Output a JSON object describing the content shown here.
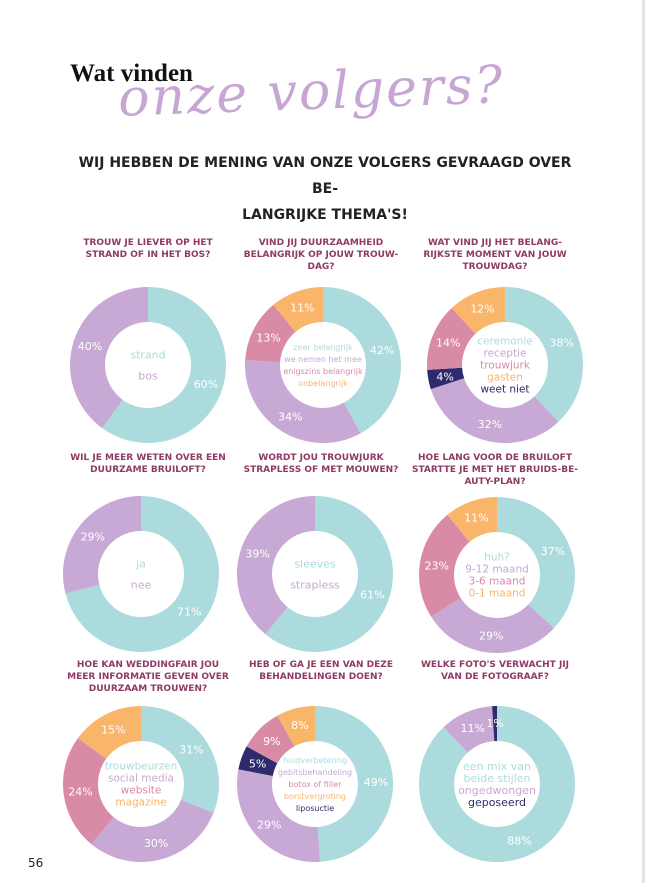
{
  "header": {
    "title_part1": "Wat vinden",
    "title_part2": "onze volgers?",
    "subtitle_line1": "WIJ HEBBEN DE MENING VAN ONZE VOLGERS GEVRAAGD OVER BE-",
    "subtitle_line2": "LANGRIJKE THEMA'S!"
  },
  "page_number": "56",
  "colors": {
    "teal": "#acdbdd",
    "lilac": "#c8a8d5",
    "pink": "#d98aa7",
    "orange": "#f9b56a",
    "navy": "#2d2b6b",
    "question": "#8e3a64"
  },
  "chart_data": [
    {
      "type": "pie",
      "title_lines": [
        "TROUW JE LIEVER OP HET",
        "STRAND OF IN HET BOS?"
      ],
      "slices": [
        {
          "label": "strand",
          "value": 60,
          "value_label": "60%",
          "color": "#acdbdd"
        },
        {
          "label": "bos",
          "value": 40,
          "value_label": "40%",
          "color": "#c8a8d5"
        }
      ]
    },
    {
      "type": "pie",
      "title_lines": [
        "VIND JIJ DUURZAAMHEID",
        "BELANGRIJK OP JOUW TROUW-",
        "DAG?"
      ],
      "slices": [
        {
          "label": "zeer belangrijk",
          "value": 42,
          "value_label": "42%",
          "color": "#acdbdd"
        },
        {
          "label": "we nemen het mee",
          "value": 34,
          "value_label": "34%",
          "color": "#c8a8d5"
        },
        {
          "label": "enigszins belangrijk",
          "value": 13,
          "value_label": "13%",
          "color": "#d98aa7"
        },
        {
          "label": "onbelangrijk",
          "value": 11,
          "value_label": "11%",
          "color": "#f9b56a"
        }
      ]
    },
    {
      "type": "pie",
      "title_lines": [
        "WAT VIND JIJ HET BELANG-",
        "RIJKSTE MOMENT VAN JOUW",
        "TROUWDAG?"
      ],
      "slices": [
        {
          "label": "ceremonie",
          "value": 38,
          "value_label": "38%",
          "color": "#acdbdd"
        },
        {
          "label": "receptie",
          "value": 32,
          "value_label": "32%",
          "color": "#c8a8d5"
        },
        {
          "label": "weet niet",
          "value": 4,
          "value_label": "4%",
          "color": "#2d2b6b"
        },
        {
          "label": "trouwjurk",
          "value": 14,
          "value_label": "14%",
          "color": "#d98aa7"
        },
        {
          "label": "gasten",
          "value": 12,
          "value_label": "12%",
          "color": "#f9b56a"
        }
      ],
      "legend_order": [
        "ceremonie",
        "receptie",
        "trouwjurk",
        "gasten",
        "weet niet"
      ]
    },
    {
      "type": "pie",
      "title_lines": [
        "WIL JE MEER WETEN OVER EEN",
        "DUURZAME BRUILOFT?"
      ],
      "slices": [
        {
          "label": "ja",
          "value": 71,
          "value_label": "71%",
          "color": "#acdbdd"
        },
        {
          "label": "nee",
          "value": 29,
          "value_label": "29%",
          "color": "#c8a8d5"
        }
      ]
    },
    {
      "type": "pie",
      "title_lines": [
        "WORDT JOU TROUWJURK",
        "STRAPLESS OF MET MOUWEN?"
      ],
      "slices": [
        {
          "label": "sleeves",
          "value": 61,
          "value_label": "61%",
          "color": "#acdbdd"
        },
        {
          "label": "strapless",
          "value": 39,
          "value_label": "39%",
          "color": "#c8a8d5"
        }
      ]
    },
    {
      "type": "pie",
      "title_lines": [
        "HOE LANG VOOR DE BRUILOFT",
        "STARTTE JE MET HET BRUIDS-BE-",
        "AUTY-PLAN?"
      ],
      "slices": [
        {
          "label": "huh?",
          "value": 37,
          "value_label": "37%",
          "color": "#acdbdd"
        },
        {
          "label": "9-12 maand",
          "value": 29,
          "value_label": "29%",
          "color": "#c8a8d5"
        },
        {
          "label": "3-6 maand",
          "value": 23,
          "value_label": "23%",
          "color": "#d98aa7"
        },
        {
          "label": "0-1 maand",
          "value": 11,
          "value_label": "11%",
          "color": "#f9b56a"
        }
      ]
    },
    {
      "type": "pie",
      "title_lines": [
        "HOE KAN WEDDINGFAIR JOU",
        "MEER INFORMATIE GEVEN OVER",
        "DUURZAAM TROUWEN?"
      ],
      "slices": [
        {
          "label": "trouwbeurzen",
          "value": 31,
          "value_label": "31%",
          "color": "#acdbdd"
        },
        {
          "label": "social media",
          "value": 30,
          "value_label": "30%",
          "color": "#c8a8d5"
        },
        {
          "label": "website",
          "value": 24,
          "value_label": "24%",
          "color": "#d98aa7"
        },
        {
          "label": "magazine",
          "value": 15,
          "value_label": "15%",
          "color": "#f9b56a"
        }
      ]
    },
    {
      "type": "pie",
      "title_lines": [
        "HEB OF GA JE EEN VAN DEZE",
        "BEHANDELINGEN DOEN?"
      ],
      "slices": [
        {
          "label": "huidverbetering",
          "value": 49,
          "value_label": "49%",
          "color": "#acdbdd"
        },
        {
          "label": "gebitsbehandeling",
          "value": 29,
          "value_label": "29%",
          "color": "#c8a8d5"
        },
        {
          "label": "liposuctie",
          "value": 5,
          "value_label": "5%",
          "color": "#2d2b6b"
        },
        {
          "label": "botox of filler",
          "value": 9,
          "value_label": "9%",
          "color": "#d98aa7"
        },
        {
          "label": "borstvergroting",
          "value": 8,
          "value_label": "8%",
          "color": "#f9b56a"
        }
      ],
      "legend_order": [
        "huidverbetering",
        "gebitsbehandeling",
        "botox of filler",
        "borstvergroting",
        "liposuctie"
      ]
    },
    {
      "type": "pie",
      "title_lines": [
        "WELKE FOTO'S VERWACHT JIJ",
        "VAN DE FOTOGRAAF?"
      ],
      "slices": [
        {
          "label": "een mix van beide stijlen",
          "value": 88,
          "value_label": "88%",
          "color": "#acdbdd"
        },
        {
          "label": "ongedwongen",
          "value": 11,
          "value_label": "11%",
          "color": "#c8a8d5"
        },
        {
          "label": "geposeerd",
          "value": 1,
          "value_label": "1%",
          "color": "#2d2b6b"
        }
      ],
      "legend_lines": [
        {
          "text": "een mix van",
          "color": "#acdbdd"
        },
        {
          "text": "beide stijlen",
          "color": "#acdbdd"
        },
        {
          "text": "ongedwongen",
          "color": "#c8a8d5"
        },
        {
          "text": "geposeerd",
          "color": "#2d2b6b"
        }
      ]
    }
  ]
}
